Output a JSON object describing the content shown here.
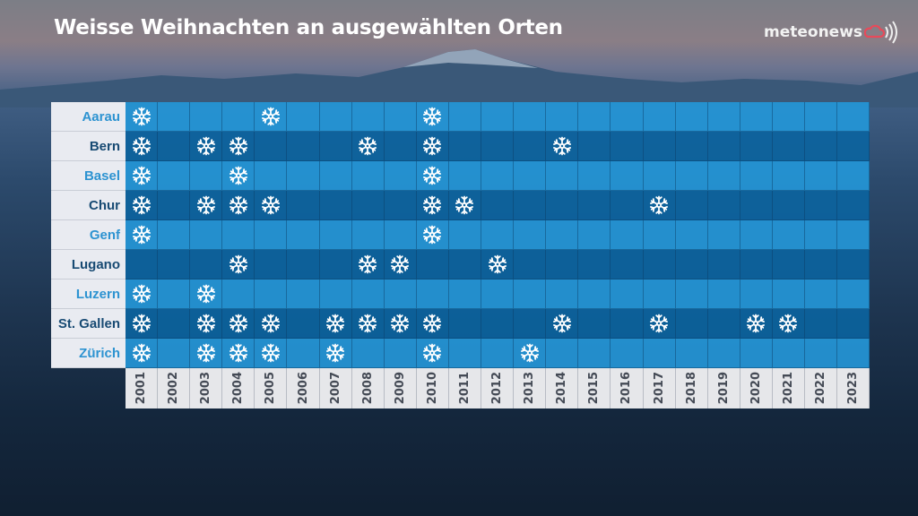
{
  "title": "Weisse Weihnachten an ausgewählten Orten",
  "logo": {
    "text": "meteonews",
    "cloud_color": "#e84a5a"
  },
  "colors": {
    "row_light": "#2496d7",
    "row_dark": "#0b64a0",
    "label_light": "#2d93d1",
    "label_dark": "#174a73"
  },
  "chart_data": {
    "type": "table",
    "title": "Weisse Weihnachten an ausgewählten Orten",
    "marker_icon": "snowflake-icon",
    "years": [
      "2001",
      "2002",
      "2003",
      "2004",
      "2005",
      "2006",
      "2007",
      "2008",
      "2009",
      "2010",
      "2011",
      "2012",
      "2013",
      "2014",
      "2015",
      "2016",
      "2017",
      "2018",
      "2019",
      "2020",
      "2021",
      "2022",
      "2023"
    ],
    "rows": [
      {
        "location": "Aarau",
        "white_christmas": [
          2001,
          2005,
          2010
        ]
      },
      {
        "location": "Bern",
        "white_christmas": [
          2001,
          2003,
          2004,
          2008,
          2010,
          2014
        ]
      },
      {
        "location": "Basel",
        "white_christmas": [
          2001,
          2004,
          2010
        ]
      },
      {
        "location": "Chur",
        "white_christmas": [
          2001,
          2003,
          2004,
          2005,
          2010,
          2011,
          2017
        ]
      },
      {
        "location": "Genf",
        "white_christmas": [
          2001,
          2010
        ]
      },
      {
        "location": "Lugano",
        "white_christmas": [
          2004,
          2008,
          2009,
          2012
        ]
      },
      {
        "location": "Luzern",
        "white_christmas": [
          2001,
          2003
        ]
      },
      {
        "location": "St. Gallen",
        "white_christmas": [
          2001,
          2003,
          2004,
          2005,
          2007,
          2008,
          2009,
          2010,
          2014,
          2017,
          2020,
          2021
        ]
      },
      {
        "location": "Zürich",
        "white_christmas": [
          2001,
          2003,
          2004,
          2005,
          2007,
          2010,
          2013
        ]
      }
    ]
  }
}
